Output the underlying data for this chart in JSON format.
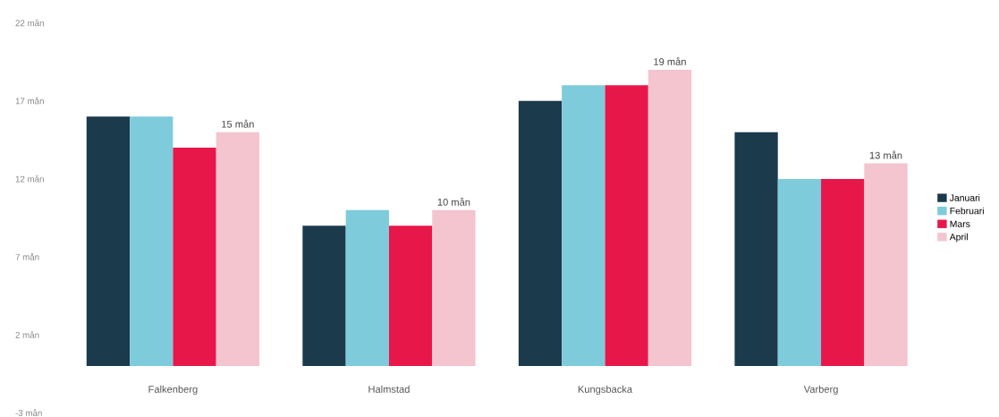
{
  "chart_data": {
    "type": "bar",
    "categories": [
      "Falkenberg",
      "Halmstad",
      "Kungsbacka",
      "Varberg"
    ],
    "series": [
      {
        "name": "Januari",
        "color": "#1b3a4b",
        "values": [
          16,
          9,
          17,
          15
        ]
      },
      {
        "name": "Februari",
        "color": "#7ecbdc",
        "values": [
          16,
          10,
          18,
          12
        ]
      },
      {
        "name": "Mars",
        "color": "#e8174a",
        "values": [
          14,
          9,
          18,
          12
        ]
      },
      {
        "name": "April",
        "color": "#f4c4cf",
        "values": [
          15,
          10,
          19,
          13
        ],
        "value_labels": [
          "15 mån",
          "10 mån",
          "19 mån",
          "13 mån"
        ]
      }
    ],
    "ylim": [
      -3,
      22
    ],
    "yticks": [
      {
        "value": -3,
        "label": "-3 mån"
      },
      {
        "value": 2,
        "label": "2 mån"
      },
      {
        "value": 7,
        "label": "7 mån"
      },
      {
        "value": 12,
        "label": "12 mån"
      },
      {
        "value": 17,
        "label": "17 mån"
      },
      {
        "value": 22,
        "label": "22 mån"
      }
    ],
    "grid": false,
    "legend": "right"
  }
}
